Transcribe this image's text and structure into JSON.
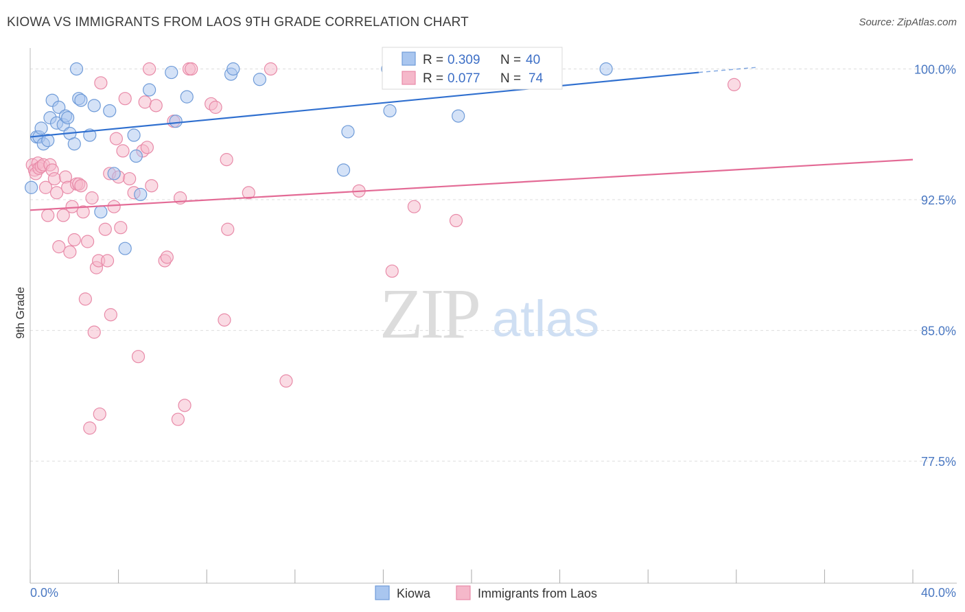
{
  "header": {
    "title": "KIOWA VS IMMIGRANTS FROM LAOS 9TH GRADE CORRELATION CHART",
    "source": "Source: ZipAtlas.com"
  },
  "watermark": {
    "zip": "ZIP",
    "atlas": "atlas"
  },
  "colors": {
    "kiowa_fill": "#a9c6ef",
    "kiowa_stroke": "#6f9bd8",
    "kiowa_line": "#2f6fcf",
    "laos_fill": "#f5b8ca",
    "laos_stroke": "#e88aa8",
    "laos_line": "#e36a95",
    "tick_text": "#4a78c2",
    "grid": "#dddddd"
  },
  "legend": {
    "rows": [
      {
        "r_label": "R = ",
        "r_value": "0.309",
        "n_label": "N = ",
        "n_value": "40"
      },
      {
        "r_label": "R = ",
        "r_value": "0.077",
        "n_label": "N = ",
        "n_value": "74"
      }
    ]
  },
  "chart_data": {
    "type": "scatter",
    "title": "KIOWA VS IMMIGRANTS FROM LAOS 9TH GRADE CORRELATION CHART",
    "xlabel": "",
    "ylabel": "9th Grade",
    "xlim": [
      0,
      40
    ],
    "ylim": [
      70.5,
      101.2
    ],
    "x_tick_labels": [
      "0.0%",
      "40.0%"
    ],
    "y_ticks": [
      77.5,
      85.0,
      92.5,
      100.0
    ],
    "y_tick_labels": [
      "77.5%",
      "85.0%",
      "92.5%",
      "100.0%"
    ],
    "grid": true,
    "legend_position": "top-center",
    "series": [
      {
        "name": "Kiowa",
        "r": 0.309,
        "n": 40,
        "trend": {
          "x": [
            0,
            30.3
          ],
          "y": [
            96.1,
            99.8
          ],
          "dashed_to": [
            33.0,
            100.1
          ]
        },
        "points": [
          [
            0.05,
            93.2
          ],
          [
            0.3,
            96.1
          ],
          [
            0.4,
            96.1
          ],
          [
            0.5,
            96.6
          ],
          [
            0.6,
            95.7
          ],
          [
            0.8,
            95.9
          ],
          [
            0.9,
            97.2
          ],
          [
            1.0,
            98.2
          ],
          [
            1.2,
            96.9
          ],
          [
            1.3,
            97.8
          ],
          [
            1.5,
            96.8
          ],
          [
            1.6,
            97.3
          ],
          [
            1.7,
            97.2
          ],
          [
            1.8,
            96.3
          ],
          [
            2.0,
            95.7
          ],
          [
            2.1,
            100.0
          ],
          [
            2.2,
            98.3
          ],
          [
            2.3,
            98.2
          ],
          [
            2.7,
            96.2
          ],
          [
            2.9,
            97.9
          ],
          [
            3.2,
            91.8
          ],
          [
            3.6,
            97.6
          ],
          [
            3.8,
            94.0
          ],
          [
            4.3,
            89.7
          ],
          [
            4.7,
            96.2
          ],
          [
            4.8,
            95.0
          ],
          [
            5.0,
            92.8
          ],
          [
            5.4,
            98.8
          ],
          [
            6.4,
            99.8
          ],
          [
            6.6,
            97.0
          ],
          [
            7.1,
            98.4
          ],
          [
            9.1,
            99.7
          ],
          [
            9.2,
            100.0
          ],
          [
            10.4,
            99.4
          ],
          [
            14.2,
            94.2
          ],
          [
            14.4,
            96.4
          ],
          [
            16.2,
            100.0
          ],
          [
            16.3,
            97.6
          ],
          [
            19.4,
            97.3
          ],
          [
            26.1,
            100.0
          ]
        ]
      },
      {
        "name": "Immigrants from Laos",
        "r": 0.077,
        "n": 74,
        "trend": {
          "x": [
            0,
            40
          ],
          "y": [
            91.9,
            94.8
          ]
        },
        "points": [
          [
            0.1,
            94.5
          ],
          [
            0.2,
            94.2
          ],
          [
            0.25,
            94.0
          ],
          [
            0.35,
            94.6
          ],
          [
            0.4,
            94.3
          ],
          [
            0.5,
            94.4
          ],
          [
            0.6,
            94.5
          ],
          [
            0.7,
            93.2
          ],
          [
            0.8,
            91.6
          ],
          [
            0.9,
            94.5
          ],
          [
            1.0,
            94.2
          ],
          [
            1.1,
            93.7
          ],
          [
            1.2,
            92.9
          ],
          [
            1.3,
            89.8
          ],
          [
            1.5,
            91.6
          ],
          [
            1.6,
            93.8
          ],
          [
            1.7,
            93.2
          ],
          [
            1.8,
            89.5
          ],
          [
            1.9,
            92.1
          ],
          [
            2.0,
            90.2
          ],
          [
            2.1,
            93.4
          ],
          [
            2.2,
            93.4
          ],
          [
            2.3,
            93.3
          ],
          [
            2.4,
            91.8
          ],
          [
            2.5,
            86.8
          ],
          [
            2.6,
            90.1
          ],
          [
            2.7,
            79.4
          ],
          [
            2.8,
            92.6
          ],
          [
            2.9,
            84.9
          ],
          [
            3.0,
            88.6
          ],
          [
            3.1,
            89.0
          ],
          [
            3.15,
            80.2
          ],
          [
            3.2,
            99.2
          ],
          [
            3.4,
            90.8
          ],
          [
            3.5,
            89.0
          ],
          [
            3.6,
            94.0
          ],
          [
            3.65,
            85.9
          ],
          [
            3.8,
            92.1
          ],
          [
            3.9,
            96.0
          ],
          [
            4.0,
            93.8
          ],
          [
            4.1,
            90.9
          ],
          [
            4.2,
            95.3
          ],
          [
            4.3,
            98.3
          ],
          [
            4.5,
            93.7
          ],
          [
            4.7,
            92.9
          ],
          [
            4.9,
            83.5
          ],
          [
            5.1,
            95.3
          ],
          [
            5.2,
            98.1
          ],
          [
            5.3,
            95.5
          ],
          [
            5.4,
            100.0
          ],
          [
            5.5,
            93.3
          ],
          [
            5.7,
            97.9
          ],
          [
            6.1,
            89.0
          ],
          [
            6.2,
            89.2
          ],
          [
            6.5,
            97.0
          ],
          [
            6.7,
            79.9
          ],
          [
            6.8,
            92.6
          ],
          [
            7.0,
            80.7
          ],
          [
            7.2,
            100.0
          ],
          [
            7.3,
            100.0
          ],
          [
            8.2,
            98.0
          ],
          [
            8.4,
            97.8
          ],
          [
            8.8,
            85.6
          ],
          [
            8.9,
            94.8
          ],
          [
            8.95,
            90.8
          ],
          [
            9.9,
            92.9
          ],
          [
            10.9,
            100.0
          ],
          [
            11.6,
            82.1
          ],
          [
            14.9,
            93.0
          ],
          [
            16.4,
            88.4
          ],
          [
            17.4,
            92.1
          ],
          [
            18.8,
            100.0
          ],
          [
            19.3,
            91.3
          ],
          [
            31.9,
            99.1
          ]
        ]
      }
    ]
  }
}
